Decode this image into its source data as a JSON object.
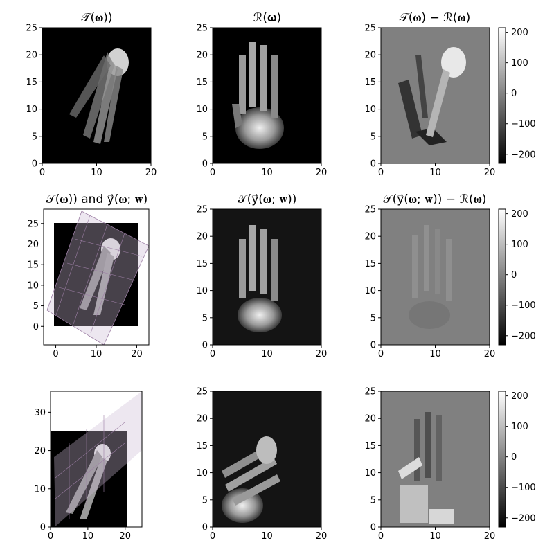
{
  "chart_data": [
    {
      "type": "heatmap",
      "title": "𝒯(𝛚))",
      "xticks": [
        "0",
        "10",
        "20"
      ],
      "yticks": [
        "0",
        "5",
        "10",
        "15",
        "20",
        "25"
      ],
      "xlim": [
        0,
        20
      ],
      "ylim": [
        0,
        25
      ],
      "colormap": "gray",
      "image": "template_T"
    },
    {
      "type": "heatmap",
      "title": "ℛ(𝛚)",
      "xticks": [
        "0",
        "10",
        "20"
      ],
      "yticks": [
        "0",
        "5",
        "10",
        "15",
        "20",
        "25"
      ],
      "xlim": [
        0,
        20
      ],
      "ylim": [
        0,
        25
      ],
      "colormap": "gray",
      "image": "reference_R"
    },
    {
      "type": "heatmap",
      "title": "𝒯(𝛚) − ℛ(𝛚)",
      "xticks": [
        "0",
        "10",
        "20"
      ],
      "yticks": [
        "0",
        "5",
        "10",
        "15",
        "20",
        "25"
      ],
      "xlim": [
        0,
        20
      ],
      "ylim": [
        0,
        25
      ],
      "colormap": "gray",
      "image": "difference_initial",
      "colorbar": {
        "ticks": [
          "200",
          "100",
          "0",
          "−100",
          "−200"
        ],
        "range": [
          -230,
          215
        ]
      }
    },
    {
      "type": "heatmap",
      "title": "𝒯(𝛚)) and y⃗(𝛚; 𝐰)",
      "xticks": [
        "0",
        "10",
        "20"
      ],
      "yticks": [
        "0",
        "5",
        "10",
        "15",
        "20",
        "25"
      ],
      "xlim": [
        -3,
        23
      ],
      "ylim": [
        -4.5,
        28.5
      ],
      "colormap": "gray",
      "image": "template_T_with_grid",
      "grid_overlay": {
        "color": "#9c7ea4",
        "rotation_deg": 20
      }
    },
    {
      "type": "heatmap",
      "title": "𝒯(y⃗(𝛚; 𝐰))",
      "xticks": [
        "0",
        "10",
        "20"
      ],
      "yticks": [
        "0",
        "5",
        "10",
        "15",
        "20",
        "25"
      ],
      "xlim": [
        0,
        20
      ],
      "ylim": [
        0,
        25
      ],
      "colormap": "gray",
      "image": "warped_template_aligned"
    },
    {
      "type": "heatmap",
      "title": "𝒯(y⃗(𝛚; 𝐰)) − ℛ(𝛚)",
      "xticks": [
        "0",
        "10",
        "20"
      ],
      "yticks": [
        "0",
        "5",
        "10",
        "15",
        "20",
        "25"
      ],
      "xlim": [
        0,
        20
      ],
      "ylim": [
        0,
        25
      ],
      "colormap": "gray",
      "image": "difference_aligned",
      "colorbar": {
        "ticks": [
          "200",
          "100",
          "0",
          "−100",
          "−200"
        ],
        "range": [
          -230,
          215
        ]
      }
    },
    {
      "type": "heatmap",
      "title": "",
      "xticks": [
        "0",
        "10",
        "20"
      ],
      "yticks": [
        "0",
        "10",
        "20",
        "30"
      ],
      "xlim": [
        0,
        24.5
      ],
      "ylim": [
        0,
        35.5
      ],
      "colormap": "gray",
      "image": "template_T_with_grid_2",
      "grid_overlay": {
        "color": "#9c7ea4",
        "rotation_deg": 40
      }
    },
    {
      "type": "heatmap",
      "title": "",
      "xticks": [
        "0",
        "10",
        "20"
      ],
      "yticks": [
        "0",
        "5",
        "10",
        "15",
        "20",
        "25"
      ],
      "xlim": [
        0,
        20
      ],
      "ylim": [
        0,
        25
      ],
      "colormap": "gray",
      "image": "warped_template_2"
    },
    {
      "type": "heatmap",
      "title": "",
      "xticks": [
        "0",
        "10",
        "20"
      ],
      "yticks": [
        "0",
        "5",
        "10",
        "15",
        "20",
        "25"
      ],
      "xlim": [
        0,
        20
      ],
      "ylim": [
        0,
        25
      ],
      "colormap": "gray",
      "image": "difference_2",
      "colorbar": {
        "ticks": [
          "200",
          "100",
          "0",
          "−100",
          "−200"
        ],
        "range": [
          -230,
          215
        ]
      }
    }
  ]
}
